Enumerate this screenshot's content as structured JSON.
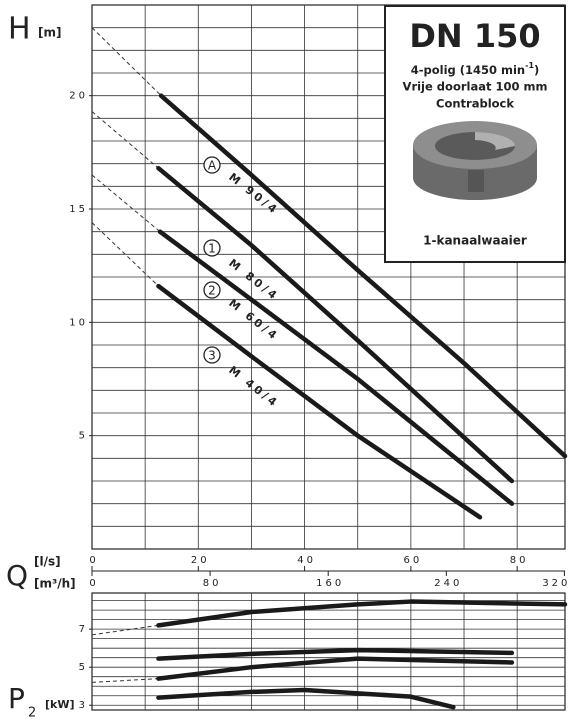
{
  "labels": {
    "h": "H",
    "h_unit": "[m]",
    "q": "Q",
    "q_unit": "[l/s]",
    "q2_unit": "[m³/h]",
    "p": "P",
    "p_sub": "2",
    "p_unit": "[kW]"
  },
  "info": {
    "title": "DN 150",
    "line1": "4-polig (1450 min",
    "line1_sup": "-1",
    "line1_end": ")",
    "line2": "Vrije doorlaat 100 mm",
    "line3": "Contrablock",
    "caption": "1-kanaalwaaier"
  },
  "chart_data": [
    {
      "type": "line",
      "xlim": [
        0,
        89
      ],
      "xticks": [
        0,
        20,
        40,
        60,
        80
      ],
      "xgrid": [
        10,
        20,
        30,
        40,
        50,
        60,
        70,
        80
      ],
      "x2lim": [
        0,
        320.4
      ],
      "x2ticks": [
        0,
        80,
        160,
        240,
        320
      ],
      "ylim": [
        0,
        24
      ],
      "yticks": [
        5,
        10,
        15,
        20
      ],
      "ygrid": [
        1,
        2,
        3,
        4,
        5,
        6,
        7,
        8,
        9,
        10,
        11,
        12,
        13,
        14,
        15,
        16,
        17,
        18,
        19,
        20,
        21,
        22,
        23
      ],
      "dash_first_segment": true,
      "series": [
        {
          "name": "M 90/4",
          "marker": "A",
          "color": "#1a1a1a",
          "x": [
            0,
            13,
            30,
            50,
            70,
            89
          ],
          "values": [
            23,
            20,
            16.5,
            12.3,
            8.2,
            4.1
          ]
        },
        {
          "name": "M 80/4",
          "marker": "1",
          "color": "#1a1a1a",
          "x": [
            0,
            12.5,
            30,
            50,
            79
          ],
          "values": [
            19.3,
            16.8,
            13.4,
            9.2,
            3
          ]
        },
        {
          "name": "M 60/4",
          "marker": "2",
          "color": "#1a1a1a",
          "x": [
            0,
            12.8,
            30,
            50,
            79
          ],
          "values": [
            16.5,
            14,
            11,
            7.5,
            2
          ]
        },
        {
          "name": "M 40/4",
          "marker": "3",
          "color": "#1a1a1a",
          "x": [
            0,
            12.5,
            30,
            50,
            73
          ],
          "values": [
            14.4,
            11.6,
            8.5,
            5,
            1.4
          ]
        }
      ]
    },
    {
      "type": "line",
      "xlim": [
        0,
        89
      ],
      "xgrid": [
        10,
        20,
        30,
        40,
        50,
        60,
        70,
        80
      ],
      "ylim": [
        2.75,
        8.9
      ],
      "yticks": [
        3,
        5,
        7
      ],
      "ygrid": [
        3,
        3.5,
        4,
        4.5,
        5,
        5.5,
        6,
        6.5,
        7,
        7.5,
        8,
        8.5
      ],
      "series": [
        {
          "color": "#1a1a1a",
          "dash_first_segment": true,
          "x": [
            0,
            12.5,
            30,
            50,
            60,
            89
          ],
          "values": [
            6.7,
            7.2,
            7.9,
            8.3,
            8.45,
            8.3
          ]
        },
        {
          "color": "#1a1a1a",
          "dash_first_segment": false,
          "x": [
            12.5,
            30,
            50,
            79
          ],
          "values": [
            5.45,
            5.7,
            5.9,
            5.75
          ]
        },
        {
          "color": "#1a1a1a",
          "dash_first_segment": true,
          "x": [
            0,
            12.5,
            30,
            50,
            79
          ],
          "values": [
            4.2,
            4.4,
            5.0,
            5.45,
            5.25
          ]
        },
        {
          "color": "#1a1a1a",
          "dash_first_segment": false,
          "x": [
            12.5,
            30,
            40,
            60,
            68
          ],
          "values": [
            3.4,
            3.7,
            3.8,
            3.45,
            2.9
          ]
        }
      ]
    }
  ]
}
